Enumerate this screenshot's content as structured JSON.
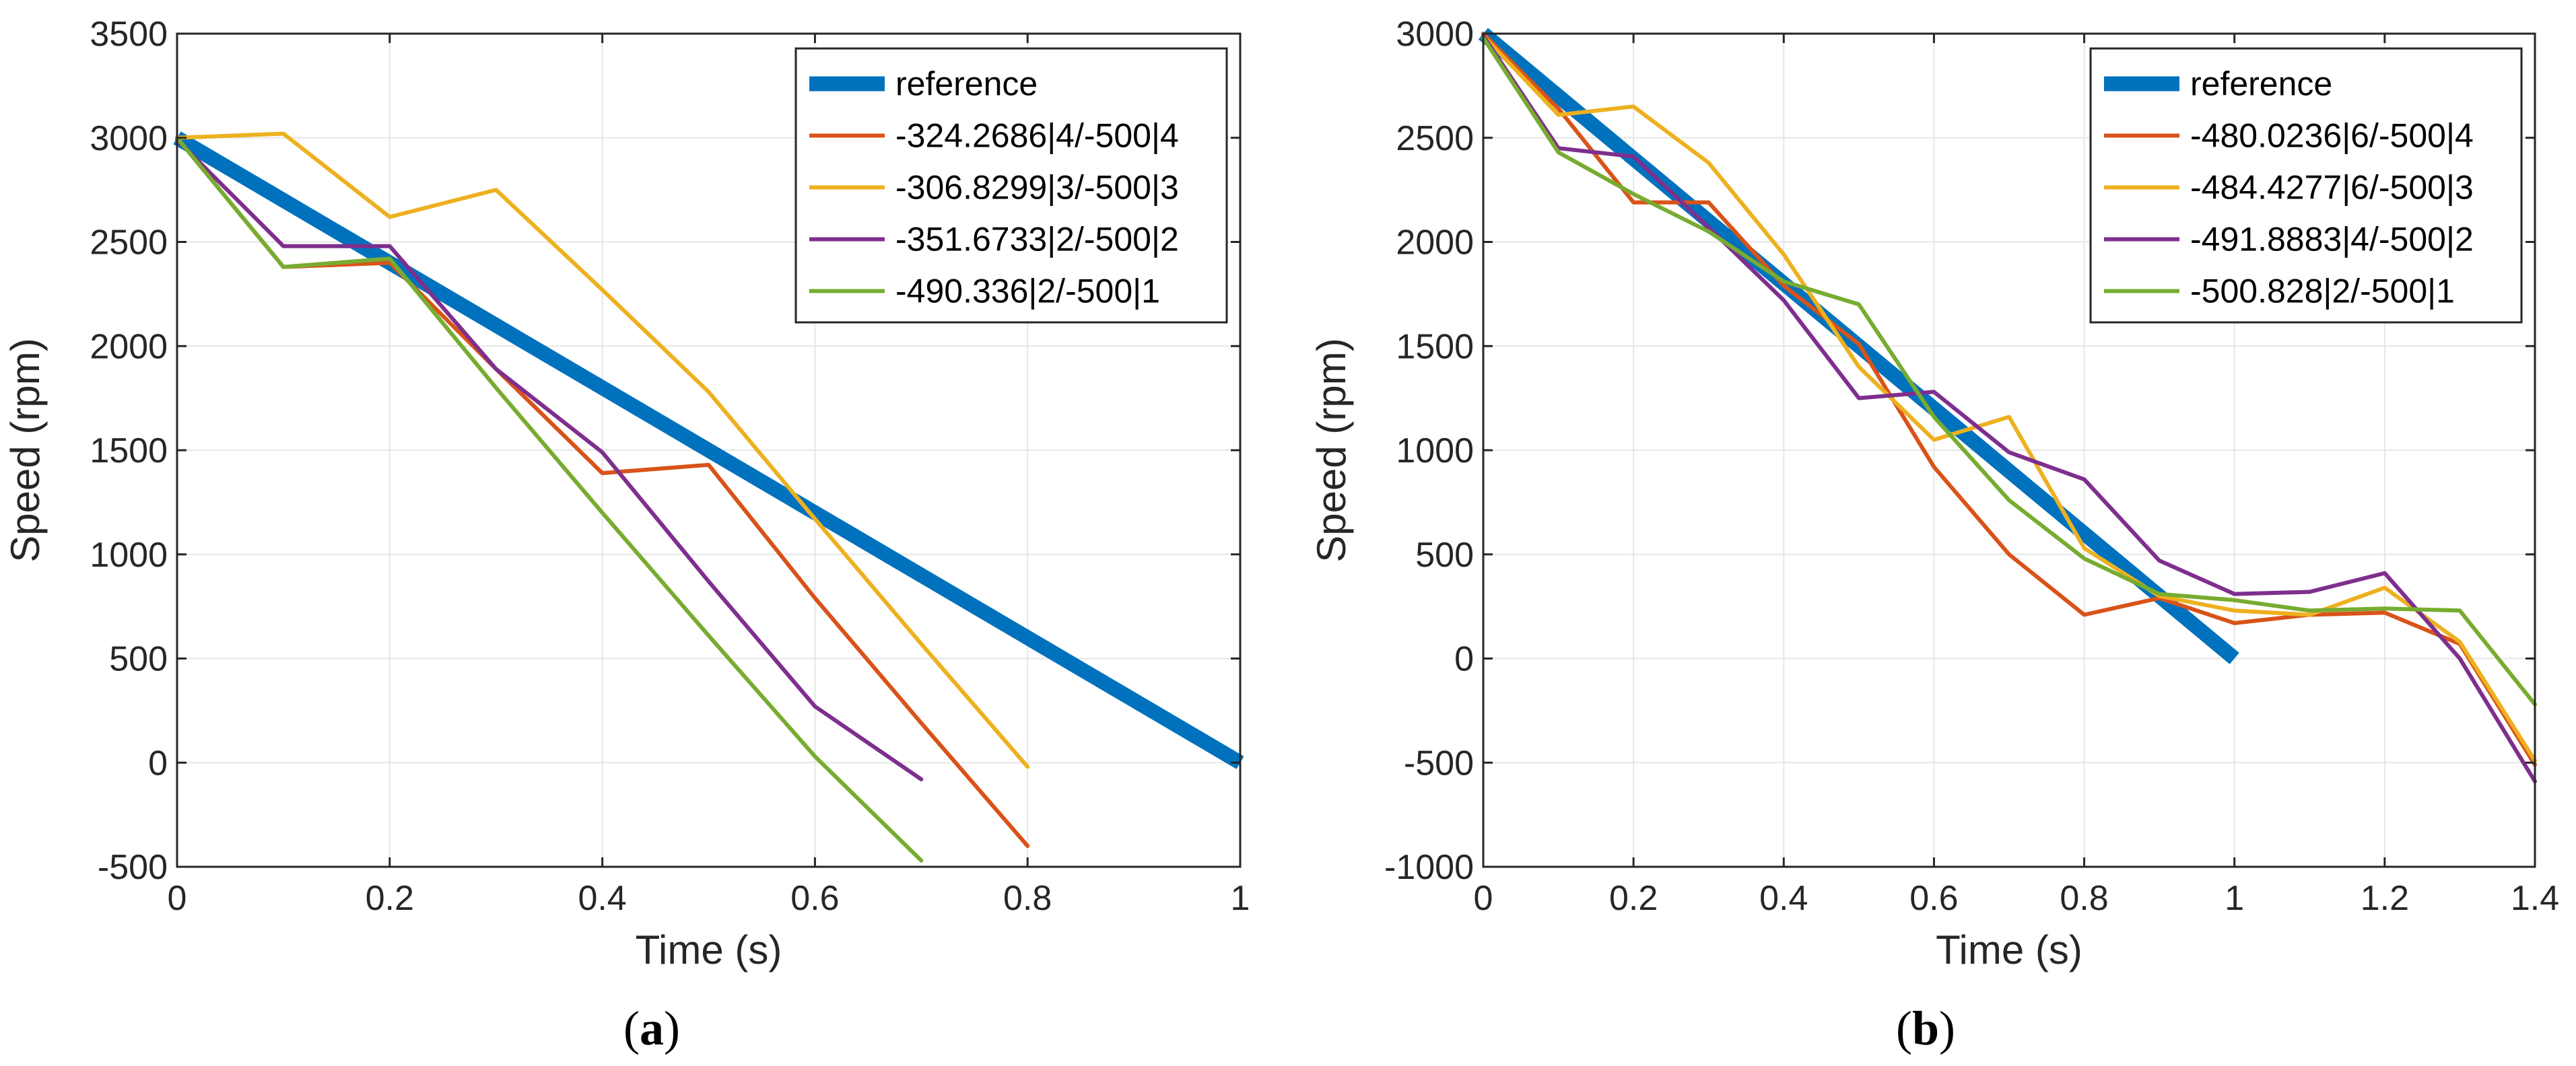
{
  "chart_data": [
    {
      "type": "line",
      "caption_open": "(",
      "caption_letter": "a",
      "caption_close": ")",
      "title": "",
      "xlabel": "Time (s)",
      "ylabel": "Speed (rpm)",
      "xlim": [
        0,
        1
      ],
      "ylim": [
        -500,
        3500
      ],
      "xticks": [
        0,
        0.2,
        0.4,
        0.6,
        0.8,
        1
      ],
      "xtick_labels": [
        "0",
        "0.2",
        "0.4",
        "0.6",
        "0.8",
        "1"
      ],
      "yticks": [
        -500,
        0,
        500,
        1000,
        1500,
        2000,
        2500,
        3000,
        3500
      ],
      "ytick_labels": [
        "-500",
        "0",
        "500",
        "1000",
        "1500",
        "2000",
        "2500",
        "3000",
        "3500"
      ],
      "grid": true,
      "legend_position": "top-right",
      "series": [
        {
          "name": "reference",
          "color": "#0072bd",
          "style": "thick",
          "x": [
            0,
            1
          ],
          "y": [
            3000,
            0
          ]
        },
        {
          "name": "-324.2686|4/-500|4",
          "color": "#d95319",
          "x": [
            0,
            0.1,
            0.2,
            0.3,
            0.4,
            0.5,
            0.6,
            0.7,
            0.8
          ],
          "y": [
            3000,
            2380,
            2400,
            1890,
            1390,
            1430,
            790,
            190,
            -400
          ]
        },
        {
          "name": "-306.8299|3/-500|3",
          "color": "#edb120",
          "x": [
            0,
            0.1,
            0.2,
            0.3,
            0.4,
            0.5,
            0.6,
            0.7,
            0.8
          ],
          "y": [
            3000,
            3020,
            2620,
            2750,
            2270,
            1780,
            1170,
            570,
            -20
          ]
        },
        {
          "name": "-351.6733|2/-500|2",
          "color": "#7e2f8e",
          "x": [
            0,
            0.1,
            0.2,
            0.3,
            0.4,
            0.5,
            0.6,
            0.7
          ],
          "y": [
            2990,
            2480,
            2480,
            1890,
            1490,
            870,
            270,
            -80
          ]
        },
        {
          "name": "-490.336|2/-500|1",
          "color": "#77ac30",
          "x": [
            0,
            0.1,
            0.2,
            0.3,
            0.4,
            0.5,
            0.6,
            0.7
          ],
          "y": [
            3000,
            2380,
            2420,
            1800,
            1200,
            610,
            30,
            -470
          ]
        }
      ]
    },
    {
      "type": "line",
      "caption_open": "(",
      "caption_letter": "b",
      "caption_close": ")",
      "title": "",
      "xlabel": "Time (s)",
      "ylabel": "Speed (rpm)",
      "xlim": [
        0,
        1.4
      ],
      "ylim": [
        -1000,
        3000
      ],
      "xticks": [
        0,
        0.2,
        0.4,
        0.6,
        0.8,
        1,
        1.2,
        1.4
      ],
      "xtick_labels": [
        "0",
        "0.2",
        "0.4",
        "0.6",
        "0.8",
        "1",
        "1.2",
        "1.4"
      ],
      "yticks": [
        -1000,
        -500,
        0,
        500,
        1000,
        1500,
        2000,
        2500,
        3000
      ],
      "ytick_labels": [
        "-1000",
        "-500",
        "0",
        "500",
        "1000",
        "1500",
        "2000",
        "2500",
        "3000"
      ],
      "grid": true,
      "legend_position": "top-right",
      "series": [
        {
          "name": "reference",
          "color": "#0072bd",
          "style": "thick",
          "x": [
            0,
            1
          ],
          "y": [
            3000,
            0
          ]
        },
        {
          "name": "-480.0236|6/-500|4",
          "color": "#d95319",
          "x": [
            0,
            0.1,
            0.2,
            0.3,
            0.4,
            0.5,
            0.6,
            0.7,
            0.8,
            0.9,
            1,
            1.1,
            1.2,
            1.3,
            1.4
          ],
          "y": [
            3000,
            2640,
            2190,
            2190,
            1790,
            1510,
            920,
            500,
            210,
            290,
            170,
            210,
            220,
            70,
            -510
          ]
        },
        {
          "name": "-484.4277|6/-500|3",
          "color": "#edb120",
          "x": [
            0,
            0.1,
            0.2,
            0.3,
            0.4,
            0.5,
            0.6,
            0.7,
            0.8,
            0.9,
            1,
            1.1,
            1.2,
            1.3,
            1.4
          ],
          "y": [
            2990,
            2610,
            2650,
            2380,
            1940,
            1400,
            1050,
            1160,
            530,
            300,
            230,
            210,
            340,
            80,
            -490
          ]
        },
        {
          "name": "-491.8883|4/-500|2",
          "color": "#7e2f8e",
          "x": [
            0,
            0.1,
            0.2,
            0.3,
            0.4,
            0.5,
            0.6,
            0.7,
            0.8,
            0.9,
            1,
            1.1,
            1.2,
            1.3,
            1.4
          ],
          "y": [
            2990,
            2450,
            2410,
            2070,
            1720,
            1250,
            1280,
            990,
            860,
            470,
            310,
            320,
            410,
            0,
            -590
          ]
        },
        {
          "name": "-500.828|2/-500|1",
          "color": "#77ac30",
          "x": [
            0,
            0.1,
            0.2,
            0.3,
            0.4,
            0.5,
            0.6,
            0.7,
            0.8,
            0.9,
            1,
            1.1,
            1.2,
            1.3,
            1.4
          ],
          "y": [
            2980,
            2430,
            2230,
            2050,
            1810,
            1700,
            1160,
            760,
            480,
            310,
            280,
            230,
            240,
            230,
            -220
          ]
        }
      ]
    }
  ]
}
